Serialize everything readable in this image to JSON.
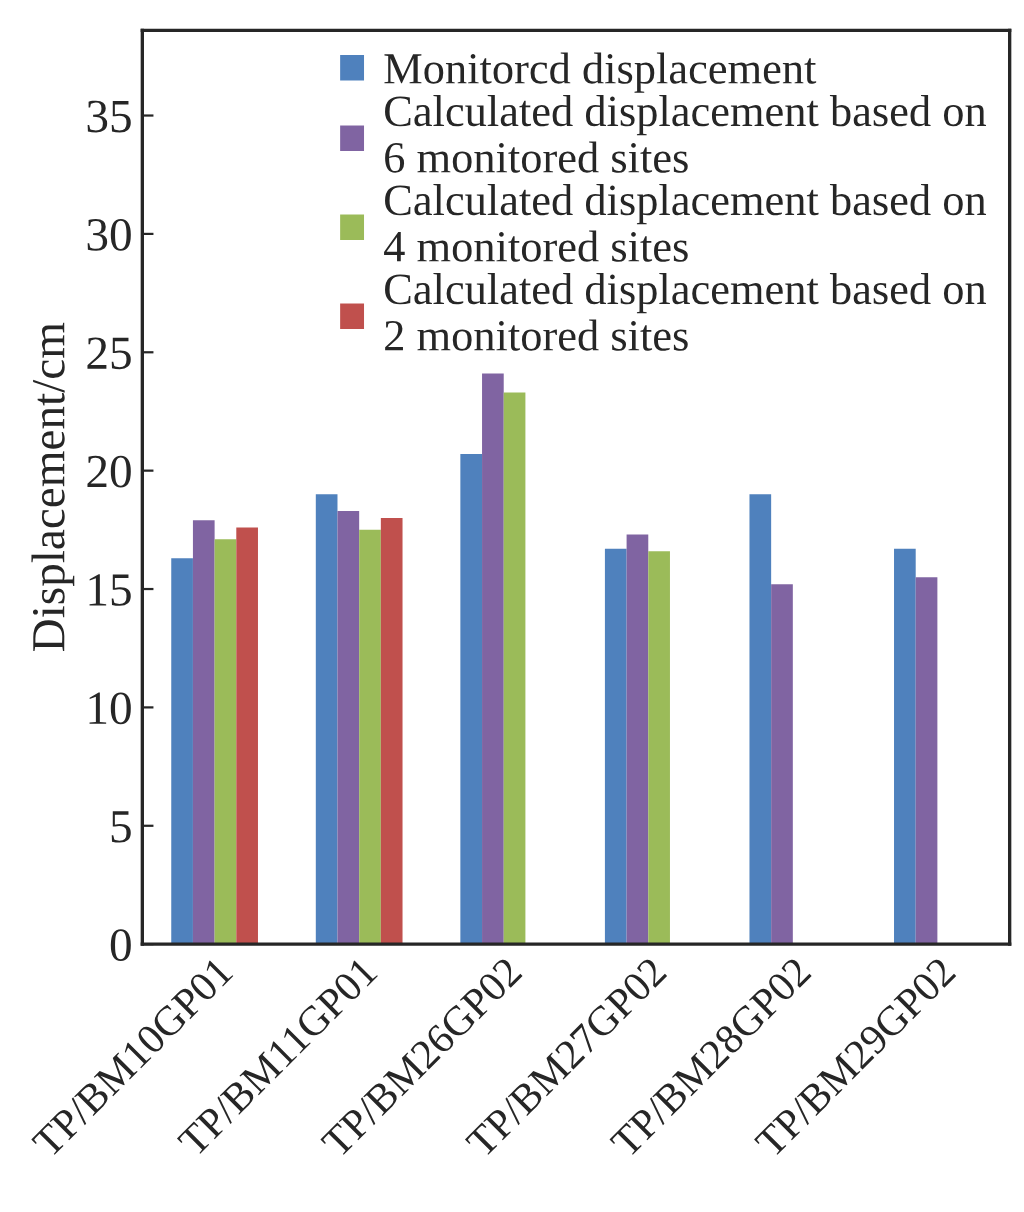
{
  "chart_data": {
    "type": "bar",
    "ylabel": "Displacement/cm",
    "categories": [
      "TP/BM10GP01",
      "TP/BM11GP01",
      "TP/BM26GP02",
      "TP/BM27GP02",
      "TP/BM28GP02",
      "TP/BM29GP02"
    ],
    "series": [
      {
        "name": "Monitorcd displacement",
        "color": "#4f81bd",
        "values": [
          16.3,
          19.0,
          20.7,
          16.7,
          19.0,
          16.7
        ]
      },
      {
        "name": "Calculated displacement based on\n6 monitored sites",
        "color": "#8064a2",
        "values": [
          17.9,
          18.3,
          24.1,
          17.3,
          15.2,
          15.5
        ]
      },
      {
        "name": "Calculated displacement based on\n4 monitored sites",
        "color": "#9bbb59",
        "values": [
          17.1,
          17.5,
          23.3,
          16.6,
          null,
          null
        ]
      },
      {
        "name": "Calculated displacement based on\n2 monitored sites",
        "color": "#c0504d",
        "values": [
          17.6,
          18.0,
          null,
          null,
          null,
          null
        ]
      }
    ],
    "ylim": [
      0,
      38.6
    ],
    "yticks": [
      0,
      5,
      10,
      15,
      20,
      25,
      30,
      35
    ],
    "grid": false,
    "legend": "top"
  }
}
